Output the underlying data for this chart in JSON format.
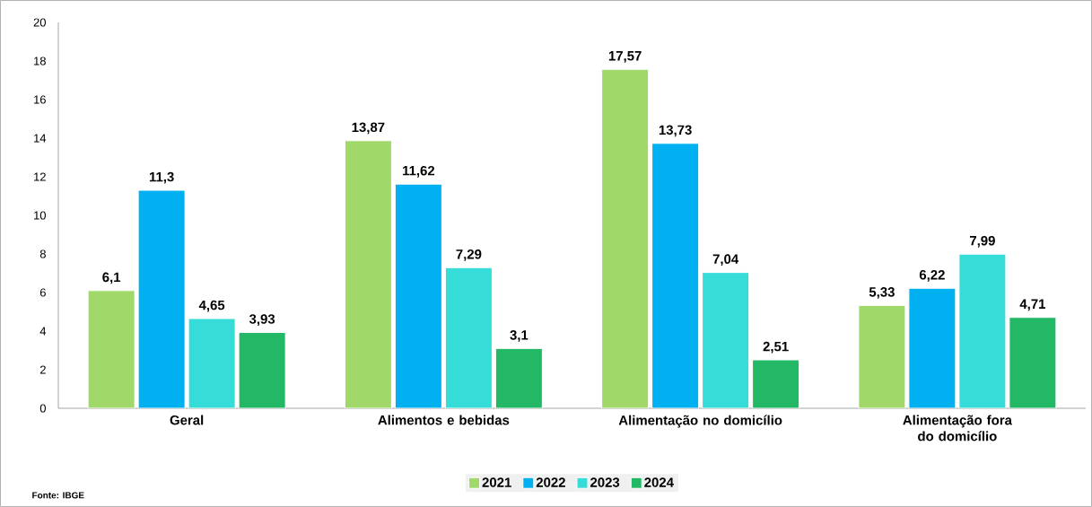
{
  "chart_data": {
    "type": "bar",
    "categories": [
      "Geral",
      "Alimentos e bebidas",
      "Alimentação no domicílio",
      "Alimentação fora do domicílio"
    ],
    "series": [
      {
        "name": "2021",
        "color": "#a0d86a",
        "values": [
          6.1,
          13.87,
          17.57,
          5.33
        ],
        "value_labels": [
          "6,1",
          "13,87",
          "17,57",
          "5,33"
        ]
      },
      {
        "name": "2022",
        "color": "#00b0f0",
        "values": [
          11.3,
          11.62,
          13.73,
          6.22
        ],
        "value_labels": [
          "11,3",
          "11,62",
          "13,73",
          "6,22"
        ]
      },
      {
        "name": "2023",
        "color": "#36dcd8",
        "values": [
          4.65,
          7.29,
          7.04,
          7.99
        ],
        "value_labels": [
          "4,65",
          "7,29",
          "7,04",
          "7,99"
        ]
      },
      {
        "name": "2024",
        "color": "#22b866",
        "values": [
          3.93,
          3.1,
          2.51,
          4.71
        ],
        "value_labels": [
          "3,93",
          "3,1",
          "2,51",
          "4,71"
        ]
      }
    ],
    "ylim": [
      0,
      20
    ],
    "yticks": [
      0,
      2,
      4,
      6,
      8,
      10,
      12,
      14,
      16,
      18,
      20
    ],
    "grid": false,
    "legend": "bottom",
    "annotations": [
      "Fonte: IBGE"
    ]
  }
}
